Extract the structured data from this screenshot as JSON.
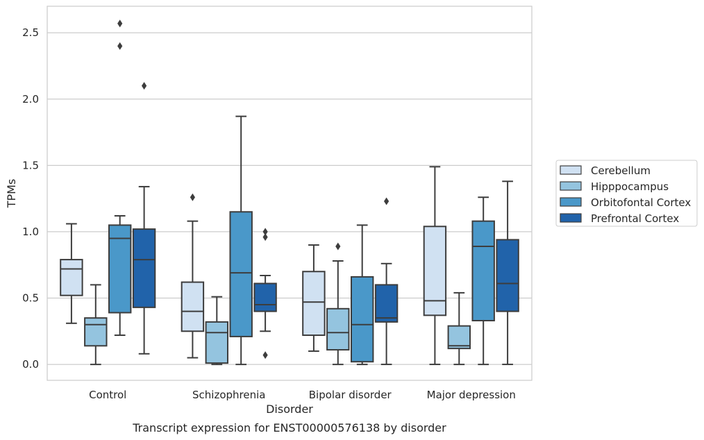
{
  "caption": "Transcript expression for ENST00000576138 by disorder",
  "chart_data": {
    "type": "box",
    "xlabel": "Disorder",
    "ylabel": "TPMs",
    "ylim": [
      -0.12,
      2.7
    ],
    "yticks": [
      "0.0",
      "0.5",
      "1.0",
      "1.5",
      "2.0",
      "2.5"
    ],
    "ytick_values": [
      0,
      0.5,
      1.0,
      1.5,
      2.0,
      2.5
    ],
    "grid": true,
    "legend_position": "right",
    "categories": [
      "Control",
      "Schizophrenia",
      "Bipolar disorder",
      "Major depression"
    ],
    "series": [
      {
        "name": "Cerebellum",
        "color": "#d0e1f2",
        "boxes": [
          {
            "whisker_low": 0.31,
            "q1": 0.52,
            "median": 0.72,
            "q3": 0.79,
            "whisker_high": 1.06,
            "outliers": []
          },
          {
            "whisker_low": 0.05,
            "q1": 0.25,
            "median": 0.4,
            "q3": 0.62,
            "whisker_high": 1.08,
            "outliers": [
              1.26
            ]
          },
          {
            "whisker_low": 0.1,
            "q1": 0.22,
            "median": 0.47,
            "q3": 0.7,
            "whisker_high": 0.9,
            "outliers": []
          },
          {
            "whisker_low": 0.0,
            "q1": 0.37,
            "median": 0.48,
            "q3": 1.04,
            "whisker_high": 1.49,
            "outliers": []
          }
        ]
      },
      {
        "name": "Hipppocampus",
        "color": "#94c4df",
        "boxes": [
          {
            "whisker_low": 0.0,
            "q1": 0.14,
            "median": 0.3,
            "q3": 0.35,
            "whisker_high": 0.6,
            "outliers": []
          },
          {
            "whisker_low": 0.0,
            "q1": 0.01,
            "median": 0.24,
            "q3": 0.32,
            "whisker_high": 0.51,
            "outliers": []
          },
          {
            "whisker_low": 0.0,
            "q1": 0.11,
            "median": 0.24,
            "q3": 0.42,
            "whisker_high": 0.78,
            "outliers": [
              0.89
            ]
          },
          {
            "whisker_low": 0.0,
            "q1": 0.12,
            "median": 0.14,
            "q3": 0.29,
            "whisker_high": 0.54,
            "outliers": []
          }
        ]
      },
      {
        "name": "Orbitofontal Cortex",
        "color": "#4a98c9",
        "boxes": [
          {
            "whisker_low": 0.22,
            "q1": 0.39,
            "median": 0.95,
            "q3": 1.05,
            "whisker_high": 1.12,
            "outliers": [
              2.57,
              2.4
            ]
          },
          {
            "whisker_low": 0.0,
            "q1": 0.21,
            "median": 0.69,
            "q3": 1.15,
            "whisker_high": 1.87,
            "outliers": []
          },
          {
            "whisker_low": 0.0,
            "q1": 0.02,
            "median": 0.3,
            "q3": 0.66,
            "whisker_high": 1.05,
            "outliers": []
          },
          {
            "whisker_low": 0.0,
            "q1": 0.33,
            "median": 0.89,
            "q3": 1.08,
            "whisker_high": 1.26,
            "outliers": []
          }
        ]
      },
      {
        "name": "Prefrontal Cortex",
        "color": "#2163aa",
        "boxes": [
          {
            "whisker_low": 0.08,
            "q1": 0.43,
            "median": 0.79,
            "q3": 1.02,
            "whisker_high": 1.34,
            "outliers": [
              2.1
            ]
          },
          {
            "whisker_low": 0.25,
            "q1": 0.4,
            "median": 0.45,
            "q3": 0.61,
            "whisker_high": 0.67,
            "outliers": [
              1.0,
              0.96,
              0.07
            ]
          },
          {
            "whisker_low": 0.0,
            "q1": 0.32,
            "median": 0.35,
            "q3": 0.6,
            "whisker_high": 0.76,
            "outliers": [
              1.23
            ]
          },
          {
            "whisker_low": 0.0,
            "q1": 0.4,
            "median": 0.61,
            "q3": 0.94,
            "whisker_high": 1.38,
            "outliers": []
          }
        ]
      }
    ]
  }
}
